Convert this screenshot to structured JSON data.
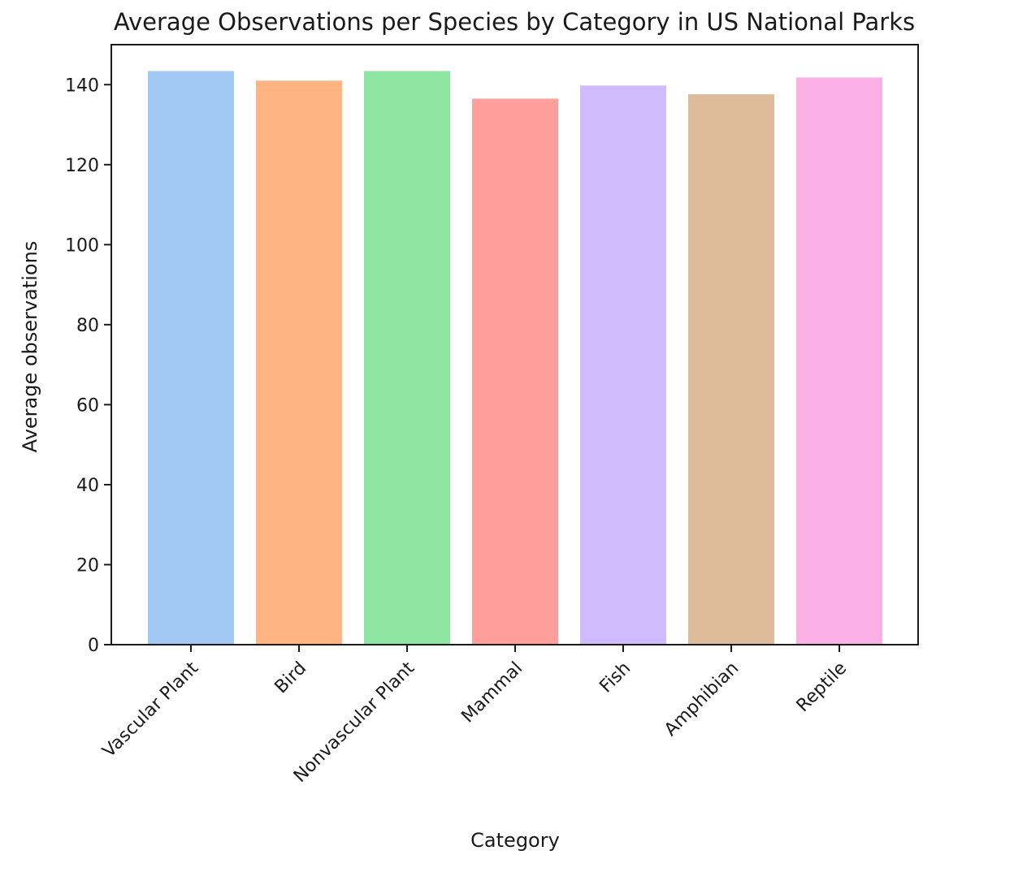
{
  "chart_data": {
    "type": "bar",
    "title": "Average Observations per Species by Category in US National Parks",
    "xlabel": "Category",
    "ylabel": "Average observations",
    "categories": [
      "Vascular Plant",
      "Bird",
      "Nonvascular Plant",
      "Mammal",
      "Fish",
      "Amphibian",
      "Reptile"
    ],
    "values": [
      143.4,
      141.0,
      143.4,
      136.5,
      139.8,
      137.6,
      141.8
    ],
    "colors": [
      "#a1c9f4",
      "#ffb482",
      "#8de5a1",
      "#ff9f9b",
      "#d0bbff",
      "#debb9b",
      "#fab0e4"
    ],
    "ylim": [
      0,
      150
    ],
    "yticks": [
      0,
      20,
      40,
      60,
      80,
      100,
      120,
      140
    ],
    "ytick_labels": [
      "0",
      "20",
      "40",
      "60",
      "80",
      "100",
      "120",
      "140"
    ],
    "xtick_rotation": 45,
    "grid": false,
    "legend": "none"
  }
}
